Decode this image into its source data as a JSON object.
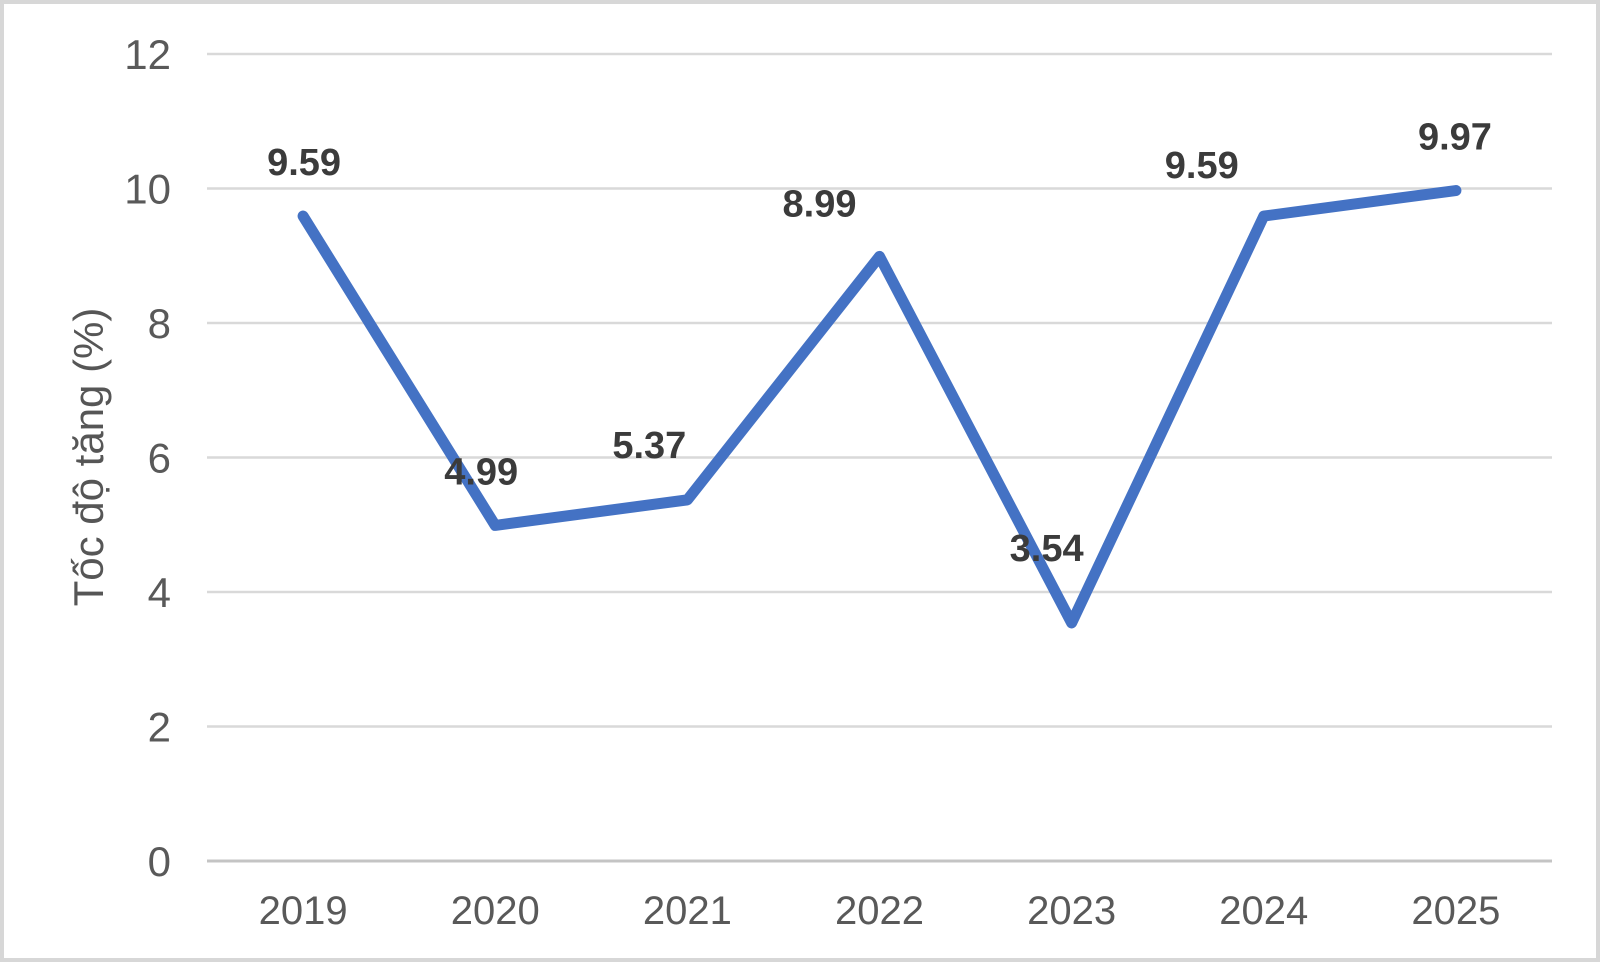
{
  "chart_data": {
    "type": "line",
    "categories": [
      "2019",
      "2020",
      "2021",
      "2022",
      "2023",
      "2024",
      "2025"
    ],
    "series": [
      {
        "name": "Tốc độ tăng",
        "values": [
          9.59,
          4.99,
          5.37,
          8.99,
          3.54,
          9.59,
          9.97
        ],
        "labels": [
          "9.59",
          "4.99",
          "5.37",
          "8.99",
          "3.54",
          "9.59",
          "9.97"
        ]
      }
    ],
    "title": "",
    "xlabel": "",
    "ylabel": "Tốc độ tăng (%)",
    "ylim": [
      0,
      12
    ],
    "yticks": [
      "0",
      "2",
      "4",
      "6",
      "8",
      "10",
      "12"
    ],
    "grid": true,
    "legend_position": "none",
    "colors": {
      "line": "#4472C4",
      "gridline": "#d9d9d9",
      "axis_line": "#c4c4c4",
      "tick_text": "#595959",
      "axis_title_text": "#565656",
      "data_label_text": "#3b3b3b",
      "frame_border": "#d7d7d7",
      "background": "#ffffff"
    }
  }
}
